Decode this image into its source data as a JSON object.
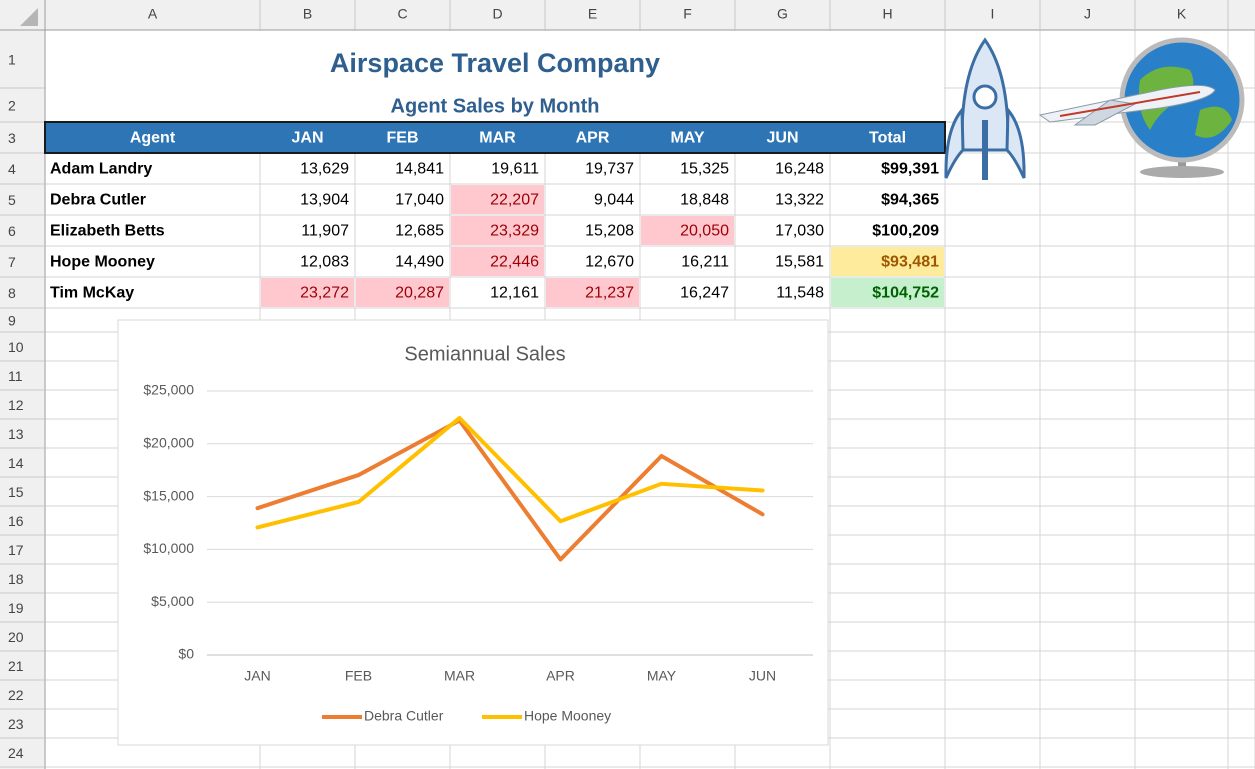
{
  "columns": [
    "A",
    "B",
    "C",
    "D",
    "E",
    "F",
    "G",
    "H",
    "I",
    "J",
    "K"
  ],
  "row_numbers": [
    1,
    2,
    3,
    4,
    5,
    6,
    7,
    8,
    9,
    10,
    11,
    12,
    13,
    14,
    15,
    16,
    17,
    18,
    19,
    20,
    21,
    22,
    23,
    24
  ],
  "sheet": {
    "title": "Airspace Travel Company",
    "subtitle": "Agent Sales by Month",
    "header": [
      "Agent",
      "JAN",
      "FEB",
      "MAR",
      "APR",
      "MAY",
      "JUN",
      "Total"
    ],
    "rows": [
      [
        "Adam Landry",
        "13,629",
        "14,841",
        "19,611",
        "19,737",
        "15,325",
        "16,248",
        "$99,391"
      ],
      [
        "Debra Cutler",
        "13,904",
        "17,040",
        "22,207",
        "9,044",
        "18,848",
        "13,322",
        "$94,365"
      ],
      [
        "Elizabeth Betts",
        "11,907",
        "12,685",
        "23,329",
        "15,208",
        "20,050",
        "17,030",
        "$100,209"
      ],
      [
        "Hope Mooney",
        "12,083",
        "14,490",
        "22,446",
        "12,670",
        "16,211",
        "15,581",
        "$93,481"
      ],
      [
        "Tim McKay",
        "23,272",
        "20,287",
        "12,161",
        "21,237",
        "16,247",
        "11,548",
        "$104,752"
      ]
    ]
  },
  "chart_data": {
    "type": "line",
    "title": "Semiannual Sales",
    "categories": [
      "JAN",
      "FEB",
      "MAR",
      "APR",
      "MAY",
      "JUN"
    ],
    "series": [
      {
        "name": "Debra Cutler",
        "color": "#ed7d31",
        "values": [
          13904,
          17040,
          22207,
          9044,
          18848,
          13322
        ]
      },
      {
        "name": "Hope Mooney",
        "color": "#ffc000",
        "values": [
          12083,
          14490,
          22446,
          12670,
          16211,
          15581
        ]
      }
    ],
    "ylim": [
      0,
      25000
    ],
    "yticks": [
      {
        "value": 0,
        "label": "$0"
      },
      {
        "value": 5000,
        "label": "$5,000"
      },
      {
        "value": 10000,
        "label": "$10,000"
      },
      {
        "value": 15000,
        "label": "$15,000"
      },
      {
        "value": 20000,
        "label": "$20,000"
      },
      {
        "value": 25000,
        "label": "$25,000"
      }
    ],
    "grid": true,
    "legend": "bottom"
  }
}
